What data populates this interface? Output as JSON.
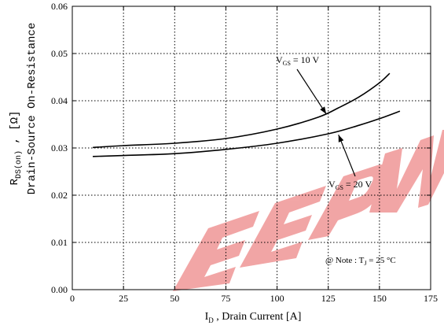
{
  "chart_data": {
    "type": "line",
    "title": "",
    "xlabel": {
      "sym": "I",
      "sub": "D",
      "text": " , Drain Current  [A]"
    },
    "ylabel": {
      "line1": {
        "sym": "R",
        "sub": "DS(on)",
        "text": " ,  [Ω]"
      },
      "line2": "Drain-Source On-Resistance"
    },
    "xlim": [
      0,
      175
    ],
    "ylim": [
      0.0,
      0.06
    ],
    "xticks": [
      0,
      25,
      50,
      75,
      100,
      125,
      150,
      175
    ],
    "yticks": [
      0.0,
      0.01,
      0.02,
      0.03,
      0.04,
      0.05,
      0.06
    ],
    "ytick_labels": [
      "0.00",
      "0.01",
      "0.02",
      "0.03",
      "0.04",
      "0.05",
      "0.06"
    ],
    "grid": true,
    "series": [
      {
        "name": "V_GS = 10 V",
        "x": [
          10,
          25,
          50,
          75,
          100,
          120,
          130,
          140,
          150,
          155
        ],
        "y": [
          0.0301,
          0.0305,
          0.031,
          0.032,
          0.034,
          0.0365,
          0.0385,
          0.0408,
          0.0438,
          0.0458
        ]
      },
      {
        "name": "V_GS = 20 V",
        "x": [
          10,
          25,
          50,
          75,
          100,
          125,
          140,
          150,
          160
        ],
        "y": [
          0.0282,
          0.0284,
          0.0288,
          0.0297,
          0.031,
          0.033,
          0.0348,
          0.0362,
          0.0378
        ]
      }
    ],
    "annotations": [
      {
        "sym": "V",
        "sub": "GS",
        "text": " = 10 V"
      },
      {
        "sym": "V",
        "sub": "GS",
        "text": " = 20 V"
      },
      {
        "prefix": "@ Note : ",
        "sym": "T",
        "sub": "J",
        "text": " = 25 °C"
      }
    ],
    "watermark": {
      "text": "EEPW",
      "color": "#e23a3a"
    }
  }
}
